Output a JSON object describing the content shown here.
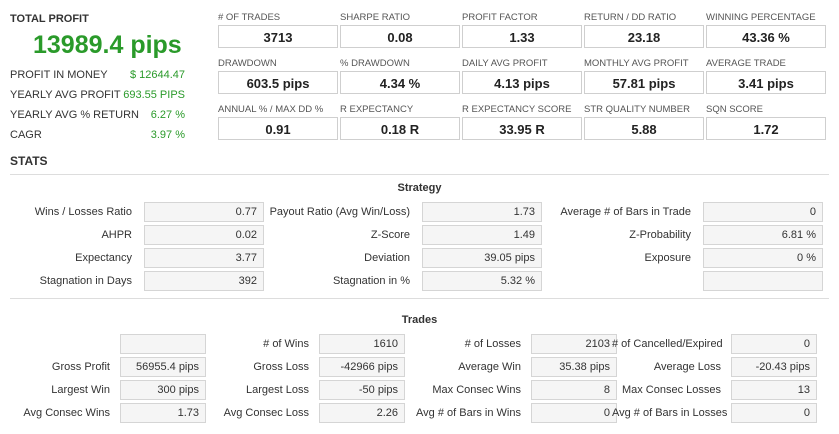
{
  "summary": {
    "total_profit_label": "TOTAL PROFIT",
    "total_profit_value": "13989.4 pips",
    "rows": [
      {
        "label": "PROFIT IN MONEY",
        "value": "$ 12644.47"
      },
      {
        "label": "YEARLY AVG PROFIT",
        "value": "693.55 PIPS"
      },
      {
        "label": "YEARLY AVG % RETURN",
        "value": "6.27 %"
      },
      {
        "label": "CAGR",
        "value": "3.97 %"
      }
    ]
  },
  "metrics": [
    {
      "label": "# OF TRADES",
      "value": "3713"
    },
    {
      "label": "SHARPE RATIO",
      "value": "0.08"
    },
    {
      "label": "PROFIT FACTOR",
      "value": "1.33"
    },
    {
      "label": "RETURN / DD RATIO",
      "value": "23.18"
    },
    {
      "label": "WINNING PERCENTAGE",
      "value": "43.36 %"
    },
    {
      "label": "DRAWDOWN",
      "value": "603.5 pips"
    },
    {
      "label": "% DRAWDOWN",
      "value": "4.34 %"
    },
    {
      "label": "DAILY AVG PROFIT",
      "value": "4.13 pips"
    },
    {
      "label": "MONTHLY AVG PROFIT",
      "value": "57.81 pips"
    },
    {
      "label": "AVERAGE TRADE",
      "value": "3.41 pips"
    },
    {
      "label": "ANNUAL % / MAX DD %",
      "value": "0.91"
    },
    {
      "label": "R EXPECTANCY",
      "value": "0.18 R"
    },
    {
      "label": "R EXPECTANCY SCORE",
      "value": "33.95 R"
    },
    {
      "label": "STR QUALITY NUMBER",
      "value": "5.88"
    },
    {
      "label": "SQN SCORE",
      "value": "1.72"
    }
  ],
  "stats_title": "STATS",
  "strategy": {
    "title": "Strategy",
    "rows": [
      [
        {
          "label": "Wins / Losses Ratio",
          "value": "0.77"
        },
        {
          "label": "Payout Ratio (Avg Win/Loss)",
          "value": "1.73"
        },
        {
          "label": "Average # of Bars in Trade",
          "value": "0"
        }
      ],
      [
        {
          "label": "AHPR",
          "value": "0.02"
        },
        {
          "label": "Z-Score",
          "value": "1.49"
        },
        {
          "label": "Z-Probability",
          "value": "6.81 %"
        }
      ],
      [
        {
          "label": "Expectancy",
          "value": "3.77"
        },
        {
          "label": "Deviation",
          "value": "39.05 pips"
        },
        {
          "label": "Exposure",
          "value": "0 %"
        }
      ],
      [
        {
          "label": "Stagnation in Days",
          "value": "392"
        },
        {
          "label": "Stagnation in %",
          "value": "5.32 %"
        },
        {
          "label": "",
          "value": ""
        }
      ]
    ]
  },
  "trades": {
    "title": "Trades",
    "rows": [
      [
        {
          "label": "",
          "value": ""
        },
        {
          "label": "# of Wins",
          "value": "1610"
        },
        {
          "label": "# of Losses",
          "value": "2103"
        },
        {
          "label": "# of Cancelled/Expired",
          "value": "0"
        }
      ],
      [
        {
          "label": "Gross Profit",
          "value": "56955.4 pips"
        },
        {
          "label": "Gross Loss",
          "value": "-42966 pips"
        },
        {
          "label": "Average Win",
          "value": "35.38 pips"
        },
        {
          "label": "Average Loss",
          "value": "-20.43 pips"
        }
      ],
      [
        {
          "label": "Largest Win",
          "value": "300 pips"
        },
        {
          "label": "Largest Loss",
          "value": "-50 pips"
        },
        {
          "label": "Max Consec Wins",
          "value": "8"
        },
        {
          "label": "Max Consec Losses",
          "value": "13"
        }
      ],
      [
        {
          "label": "Avg Consec Wins",
          "value": "1.73"
        },
        {
          "label": "Avg Consec Loss",
          "value": "2.26"
        },
        {
          "label": "Avg # of Bars in Wins",
          "value": "0"
        },
        {
          "label": "Avg # of Bars in Losses",
          "value": "0"
        }
      ]
    ]
  }
}
